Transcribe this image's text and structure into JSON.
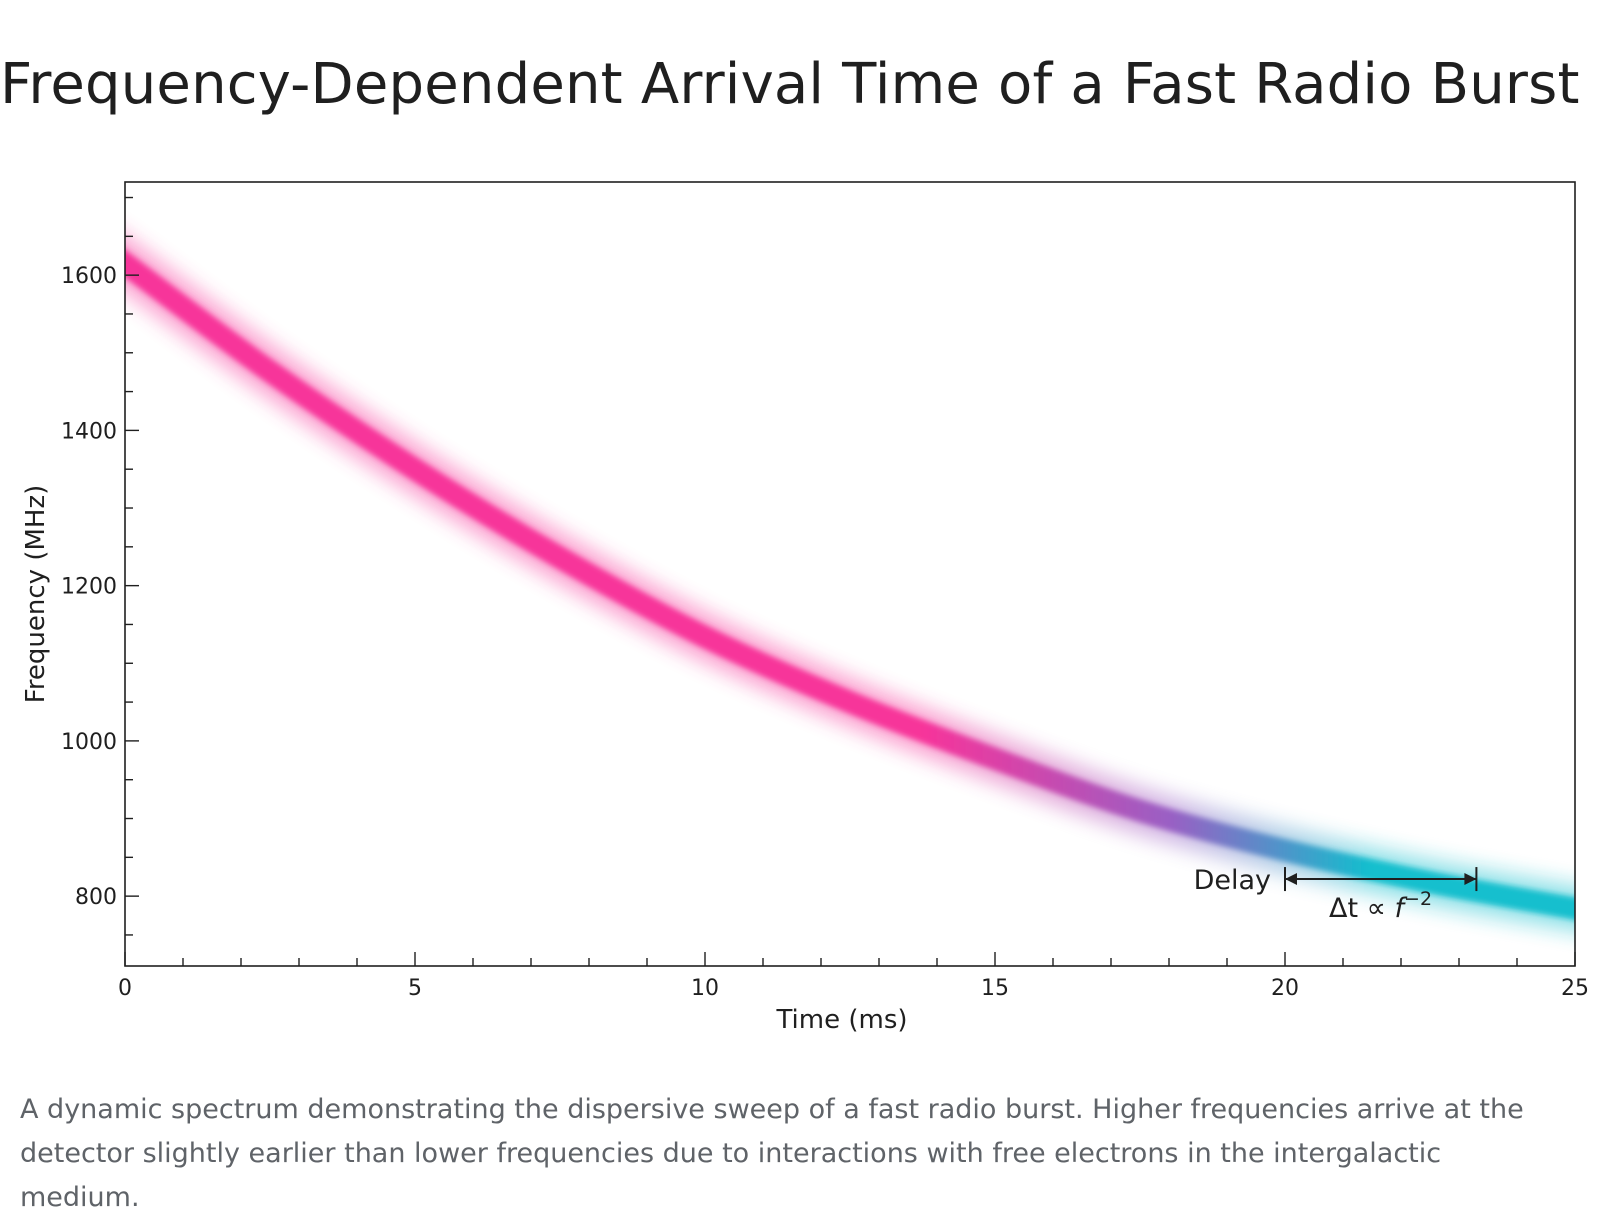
{
  "title": "Frequency-Dependent Arrival Time of a Fast Radio Burst",
  "caption": "A dynamic spectrum demonstrating the dispersive sweep of a fast radio burst. Higher frequencies arrive at the detector slightly earlier than lower frequencies due to interactions with free electrons in the intergalactic medium.",
  "chart_data": {
    "type": "line",
    "xlabel": "Time (ms)",
    "ylabel": "Frequency (MHz)",
    "xlim": [
      0,
      25
    ],
    "ylim": [
      710,
      1720
    ],
    "x_ticks": [
      0,
      5,
      10,
      15,
      20,
      25
    ],
    "x_tick_labels": [
      "0",
      "5",
      "10",
      "15",
      "20",
      "25"
    ],
    "y_ticks": [
      800,
      1000,
      1200,
      1400,
      1600
    ],
    "y_tick_labels": [
      "800",
      "1000",
      "1200",
      "1400",
      "1600"
    ],
    "grid": false,
    "series": [
      {
        "x": [
          0,
          2.5,
          5,
          7.5,
          10,
          12.5,
          15,
          17.5,
          20,
          22.5,
          25
        ],
        "y": [
          1615,
          1476,
          1350,
          1236,
          1134,
          1050,
          977,
          910,
          859,
          818,
          784
        ]
      }
    ],
    "colors": {
      "high_frequency": "#f7349a",
      "mid_frequency": "#9a5fc4",
      "low_frequency": "#12bfce"
    },
    "annotation": {
      "label": "Delay",
      "formula_prefix": "Δt ∝ ",
      "formula_var": "f",
      "formula_exp": "−2",
      "x_start": 20,
      "x_end": 23.3,
      "y": 822
    }
  }
}
